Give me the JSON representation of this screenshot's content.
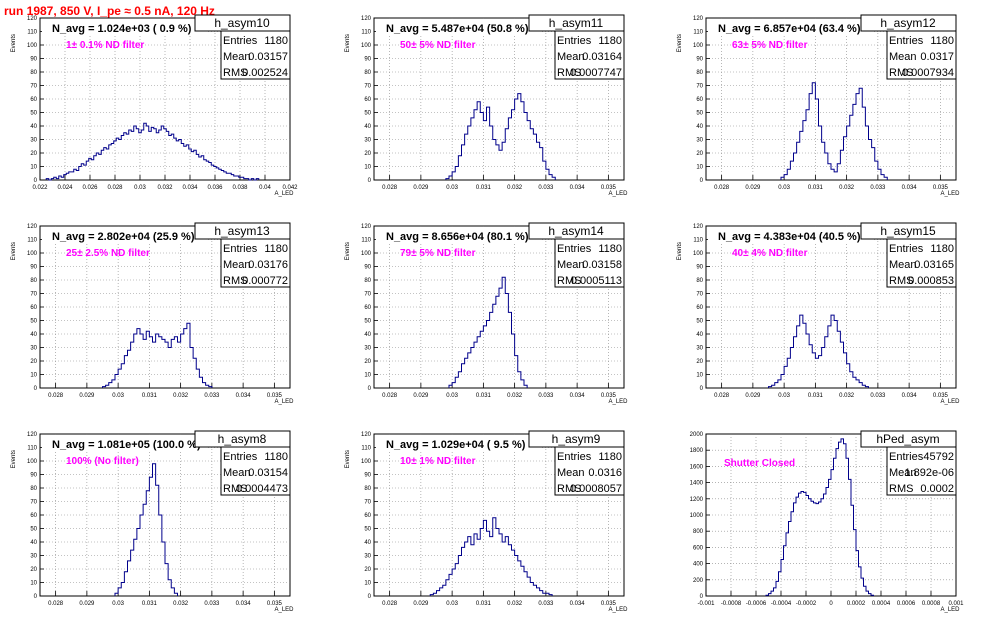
{
  "run_title": "run 1987,   850 V, I_pe ≈ 0.5 nA, 120 Hz",
  "chart_data": [
    {
      "type": "bar",
      "title": "h_asym10",
      "nav": "N_avg = 1.024e+03 ( 0.9 %)",
      "filter": "1± 0.1% ND filter",
      "stats": [
        [
          "Entries",
          "1180"
        ],
        [
          "Mean",
          "0.03157"
        ],
        [
          "RMS",
          "0.002524"
        ]
      ],
      "xlabel": "A_LED",
      "ylabel": "Events",
      "xlim": [
        0.022,
        0.042
      ],
      "ylim": [
        0,
        120
      ],
      "ystep": 10,
      "xticks": [
        "0.022",
        "0.024",
        "0.026",
        "0.028",
        "0.03",
        "0.032",
        "0.034",
        "0.036",
        "0.038",
        "0.04",
        "0.042"
      ],
      "hist": {
        "x0": 0.0225,
        "dx": 0.0002,
        "values": [
          1,
          0,
          1,
          2,
          1,
          3,
          2,
          4,
          5,
          6,
          6,
          8,
          7,
          10,
          12,
          11,
          14,
          16,
          15,
          18,
          20,
          19,
          22,
          24,
          23,
          26,
          27,
          29,
          31,
          30,
          33,
          35,
          34,
          37,
          36,
          40,
          38,
          35,
          37,
          42,
          40,
          36,
          39,
          38,
          35,
          37,
          40,
          38,
          36,
          33,
          34,
          31,
          29,
          30,
          27,
          25,
          26,
          23,
          21,
          22,
          19,
          17,
          18,
          15,
          14,
          13,
          11,
          10,
          9,
          8,
          7,
          6,
          5,
          5,
          4,
          3,
          3,
          2,
          2,
          1,
          1,
          0,
          1,
          0,
          1
        ]
      }
    },
    {
      "type": "bar",
      "title": "h_asym11",
      "nav": "N_avg = 5.487e+04 (50.8 %)",
      "filter": "50± 5% ND filter",
      "stats": [
        [
          "Entries",
          "1180"
        ],
        [
          "Mean",
          "0.03164"
        ],
        [
          "RMS",
          "0.0007747"
        ]
      ],
      "xlabel": "A_LED",
      "ylabel": "Events",
      "xlim": [
        0.0275,
        0.0355
      ],
      "ylim": [
        0,
        120
      ],
      "ystep": 10,
      "xticks": [
        "0.028",
        "0.029",
        "0.03",
        "0.031",
        "0.032",
        "0.033",
        "0.034",
        "0.035"
      ],
      "hist": {
        "x0": 0.0298,
        "dx": 0.0001,
        "values": [
          1,
          3,
          6,
          10,
          18,
          26,
          34,
          40,
          46,
          52,
          58,
          50,
          44,
          54,
          40,
          30,
          26,
          22,
          28,
          38,
          46,
          52,
          60,
          64,
          58,
          50,
          44,
          38,
          34,
          28,
          24,
          14,
          8,
          4,
          2
        ]
      }
    },
    {
      "type": "bar",
      "title": "h_asym12",
      "nav": "N_avg = 6.857e+04 (63.4 %)",
      "filter": "63± 5% ND filter",
      "stats": [
        [
          "Entries",
          "1180"
        ],
        [
          "Mean",
          "0.0317"
        ],
        [
          "RMS",
          "0.0007934"
        ]
      ],
      "xlabel": "A_LED",
      "ylabel": "Events",
      "xlim": [
        0.0275,
        0.0355
      ],
      "ylim": [
        0,
        120
      ],
      "ystep": 10,
      "xticks": [
        "0.028",
        "0.029",
        "0.03",
        "0.031",
        "0.032",
        "0.033",
        "0.034",
        "0.035"
      ],
      "hist": {
        "x0": 0.0299,
        "dx": 0.0001,
        "values": [
          2,
          4,
          8,
          14,
          20,
          28,
          36,
          44,
          52,
          64,
          72,
          60,
          40,
          28,
          20,
          12,
          8,
          6,
          12,
          22,
          32,
          40,
          48,
          56,
          64,
          68,
          54,
          40,
          30,
          24,
          14,
          8,
          4,
          2
        ]
      }
    },
    {
      "type": "bar",
      "title": "h_asym13",
      "nav": "N_avg = 2.802e+04 (25.9 %)",
      "filter": "25± 2.5% ND filter",
      "stats": [
        [
          "Entries",
          "1180"
        ],
        [
          "Mean",
          "0.03176"
        ],
        [
          "RMS",
          "0.000772"
        ]
      ],
      "xlabel": "A_LED",
      "ylabel": "Events",
      "xlim": [
        0.0275,
        0.0355
      ],
      "ylim": [
        0,
        120
      ],
      "ystep": 10,
      "xticks": [
        "0.028",
        "0.029",
        "0.03",
        "0.031",
        "0.032",
        "0.033",
        "0.034",
        "0.035"
      ],
      "hist": {
        "x0": 0.0295,
        "dx": 0.0001,
        "values": [
          1,
          2,
          4,
          6,
          10,
          14,
          18,
          24,
          28,
          34,
          40,
          44,
          40,
          36,
          42,
          38,
          34,
          40,
          38,
          36,
          34,
          30,
          36,
          38,
          34,
          40,
          44,
          48,
          30,
          22,
          14,
          8,
          4,
          2,
          1
        ]
      }
    },
    {
      "type": "bar",
      "title": "h_asym14",
      "nav": "N_avg = 8.656e+04 (80.1 %)",
      "filter": "79± 5% ND filter",
      "stats": [
        [
          "Entries",
          "1180"
        ],
        [
          "Mean",
          "0.03158"
        ],
        [
          "RMS",
          "0.0005113"
        ]
      ],
      "xlabel": "A_LED",
      "ylabel": "Events",
      "xlim": [
        0.0275,
        0.0355
      ],
      "ylim": [
        0,
        120
      ],
      "ystep": 10,
      "xticks": [
        "0.028",
        "0.029",
        "0.03",
        "0.031",
        "0.032",
        "0.033",
        "0.034",
        "0.035"
      ],
      "hist": {
        "x0": 0.0299,
        "dx": 0.0001,
        "values": [
          2,
          4,
          8,
          12,
          18,
          22,
          26,
          30,
          34,
          38,
          42,
          46,
          50,
          56,
          62,
          68,
          74,
          82,
          70,
          56,
          40,
          24,
          12,
          6,
          2
        ]
      }
    },
    {
      "type": "bar",
      "title": "h_asym15",
      "nav": "N_avg = 4.383e+04 (40.5 %)",
      "filter": "40± 4% ND filter",
      "stats": [
        [
          "Entries",
          "1180"
        ],
        [
          "Mean",
          "0.03165"
        ],
        [
          "RMS",
          "0.000853"
        ]
      ],
      "xlabel": "A_LED",
      "ylabel": "Events",
      "xlim": [
        0.0275,
        0.0355
      ],
      "ylim": [
        0,
        120
      ],
      "ystep": 10,
      "xticks": [
        "0.028",
        "0.029",
        "0.03",
        "0.031",
        "0.032",
        "0.033",
        "0.034",
        "0.035"
      ],
      "hist": {
        "x0": 0.0295,
        "dx": 0.0001,
        "values": [
          1,
          2,
          4,
          6,
          10,
          16,
          22,
          30,
          38,
          46,
          54,
          48,
          40,
          32,
          26,
          22,
          24,
          30,
          38,
          46,
          54,
          50,
          42,
          34,
          26,
          18,
          12,
          8,
          6,
          4,
          2,
          1
        ]
      }
    },
    {
      "type": "bar",
      "title": "h_asym8",
      "nav": "N_avg = 1.081e+05 (100.0 %)",
      "filter": "100% (No filter)",
      "stats": [
        [
          "Entries",
          "1180"
        ],
        [
          "Mean",
          "0.03154"
        ],
        [
          "RMS",
          "0.0004473"
        ]
      ],
      "xlabel": "A_LED",
      "ylabel": "Events",
      "xlim": [
        0.0275,
        0.0355
      ],
      "ylim": [
        0,
        120
      ],
      "ystep": 10,
      "xticks": [
        "0.028",
        "0.029",
        "0.03",
        "0.031",
        "0.032",
        "0.033",
        "0.034",
        "0.035"
      ],
      "hist": {
        "x0": 0.0299,
        "dx": 0.0001,
        "values": [
          2,
          6,
          10,
          18,
          26,
          34,
          42,
          50,
          60,
          68,
          78,
          88,
          98,
          82,
          60,
          40,
          24,
          12,
          6,
          2
        ]
      }
    },
    {
      "type": "bar",
      "title": "h_asym9",
      "nav": "N_avg = 1.029e+04 ( 9.5 %)",
      "filter": "10± 1% ND filter",
      "stats": [
        [
          "Entries",
          "1180"
        ],
        [
          "Mean",
          "0.0316"
        ],
        [
          "RMS",
          "0.0008057"
        ]
      ],
      "xlabel": "A_LED",
      "ylabel": "Events",
      "xlim": [
        0.0275,
        0.0355
      ],
      "ylim": [
        0,
        120
      ],
      "ystep": 10,
      "xticks": [
        "0.028",
        "0.029",
        "0.03",
        "0.031",
        "0.032",
        "0.033",
        "0.034",
        "0.035"
      ],
      "hist": {
        "x0": 0.0293,
        "dx": 0.0001,
        "values": [
          1,
          2,
          4,
          6,
          8,
          12,
          16,
          20,
          24,
          30,
          36,
          40,
          44,
          38,
          46,
          42,
          50,
          56,
          48,
          44,
          58,
          50,
          46,
          40,
          44,
          38,
          34,
          30,
          26,
          22,
          18,
          14,
          10,
          8,
          6,
          4,
          2,
          2,
          1
        ]
      }
    },
    {
      "type": "bar",
      "title": "hPed_asym",
      "nav": "",
      "filter": "Shutter Closed",
      "stats": [
        [
          "Entries",
          "45792"
        ],
        [
          "Mean",
          "1.892e-06"
        ],
        [
          "RMS",
          "0.0002"
        ]
      ],
      "xlabel": "A_LED",
      "ylabel": "",
      "xlim": [
        -0.001,
        0.001
      ],
      "ylim": [
        0,
        2000
      ],
      "ystep": 200,
      "xticks": [
        "-0.001",
        "-0.0008",
        "-0.0006",
        "-0.0004",
        "-0.0002",
        "0",
        "0.0002",
        "0.0004",
        "0.0006",
        "0.0008",
        "0.001"
      ],
      "hist": {
        "x0": -0.00052,
        "dx": 2e-05,
        "values": [
          10,
          30,
          60,
          100,
          180,
          300,
          450,
          620,
          780,
          920,
          1040,
          1150,
          1220,
          1270,
          1290,
          1280,
          1240,
          1200,
          1170,
          1150,
          1140,
          1160,
          1200,
          1260,
          1340,
          1440,
          1560,
          1700,
          1820,
          1900,
          1940,
          1880,
          1700,
          1440,
          1120,
          820,
          560,
          360,
          220,
          120,
          60,
          30,
          10
        ]
      }
    }
  ]
}
